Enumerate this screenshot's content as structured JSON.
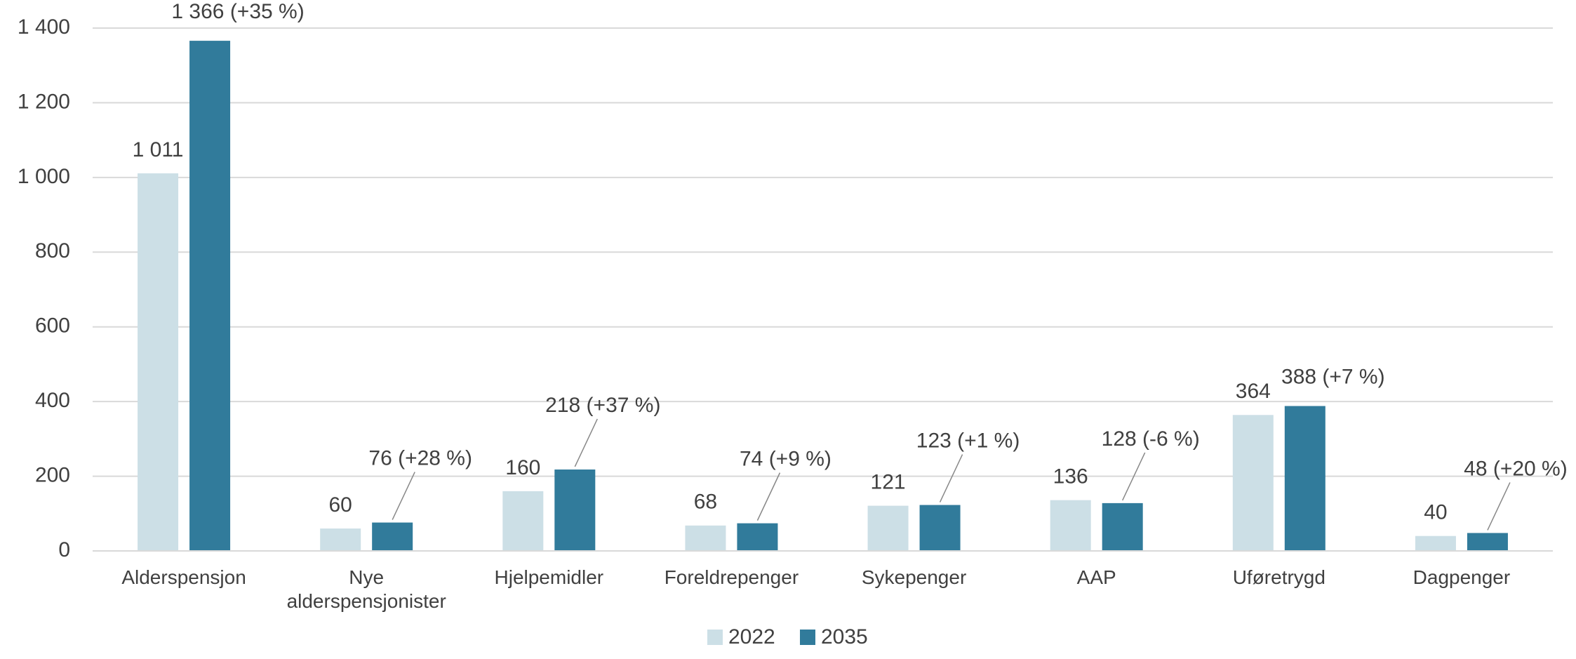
{
  "chart_data": {
    "type": "bar",
    "categories": [
      "Alderspensjon",
      "Nye alderspensjonister",
      "Hjelpemidler",
      "Foreldrepenger",
      "Sykepenger",
      "AAP",
      "Uføretrygd",
      "Dagpenger"
    ],
    "series": [
      {
        "name": "2022",
        "color": "#ccdfe6",
        "values": [
          1011,
          60,
          160,
          68,
          121,
          136,
          364,
          40
        ],
        "value_labels": [
          "1 011",
          "60",
          "160",
          "68",
          "121",
          "136",
          "364",
          "40"
        ]
      },
      {
        "name": "2035",
        "color": "#317b9b",
        "values": [
          1366,
          76,
          218,
          74,
          123,
          128,
          388,
          48
        ],
        "value_labels": [
          "1 366 (+35 %)",
          "76 (+28 %)",
          "218 (+37 %)",
          "74 (+9 %)",
          "123 (+1 %)",
          "128 (-6 %)",
          "388 (+7 %)",
          "48 (+20 %)"
        ]
      }
    ],
    "ylim": [
      0,
      1400
    ],
    "yticks": [
      0,
      200,
      400,
      600,
      800,
      {
        "value": 1000,
        "label": "1 000"
      },
      {
        "value": 1200,
        "label": "1 200"
      },
      {
        "value": 1400,
        "label": "1 400"
      }
    ],
    "grid": true,
    "legend": "bottom"
  }
}
